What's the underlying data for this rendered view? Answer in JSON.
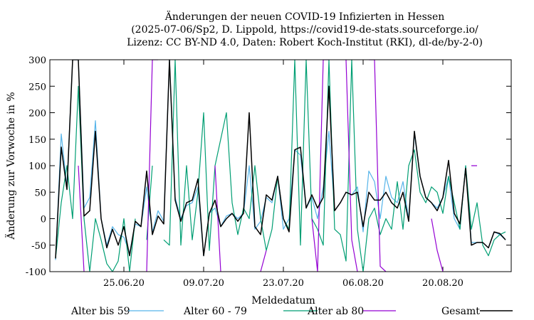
{
  "chart_data": {
    "type": "line",
    "title_lines": [
      "Änderungen der neuen COVID-19 Infizierten in Hessen",
      "(2025-07-06/Sp2, D. Lippold, https://covid19-de-stats.sourceforge.io/",
      "Lizenz: CC BY-ND 4.0, Daten: Robert Koch-Institut (RKI), dl-de/by-2-0)"
    ],
    "xlabel": "Meldedatum",
    "ylabel": "Änderung zur Vorwoche in %",
    "ylim": [
      -100,
      300
    ],
    "yticks": [
      -100,
      -50,
      0,
      50,
      100,
      150,
      200,
      250,
      300
    ],
    "xlim": [
      "2020-06-12",
      "2020-09-01"
    ],
    "xticks": [
      {
        "date": "2020-06-25",
        "label": "25.06.20"
      },
      {
        "date": "2020-07-09",
        "label": "09.07.20"
      },
      {
        "date": "2020-07-23",
        "label": "23.07.20"
      },
      {
        "date": "2020-08-06",
        "label": "06.08.20"
      },
      {
        "date": "2020-08-20",
        "label": "20.08.20"
      }
    ],
    "x_start": "2020-06-13",
    "grid": false,
    "legend_position": "bottom",
    "series": [
      {
        "name": "Alter bis 59",
        "color": "#56b4e9",
        "values": [
          -78,
          160,
          60,
          300,
          300,
          20,
          40,
          185,
          0,
          -50,
          -15,
          -30,
          -35,
          -65,
          -10,
          -15,
          60,
          -25,
          15,
          -5,
          300,
          40,
          0,
          25,
          30,
          60,
          -70,
          10,
          20,
          -15,
          5,
          10,
          0,
          10,
          100,
          -20,
          -5,
          40,
          30,
          80,
          -20,
          0,
          130,
          120,
          20,
          40,
          0,
          60,
          165,
          15,
          30,
          50,
          45,
          60,
          -25,
          90,
          70,
          0,
          80,
          40,
          30,
          70,
          0,
          160,
          80,
          40,
          30,
          20,
          40,
          80,
          0,
          -20,
          100,
          -45,
          -45,
          -45,
          -55,
          -25,
          -30,
          -40
        ]
      },
      {
        "name": "Alter 60 - 79",
        "color": "#009e73",
        "values": [
          -75,
          30,
          100,
          0,
          250,
          0,
          -100,
          0,
          -40,
          -85,
          -100,
          -80,
          0,
          -100,
          0,
          null,
          -40,
          100,
          null,
          -40,
          -50,
          300,
          -50,
          100,
          -40,
          50,
          200,
          -60,
          100,
          150,
          200,
          30,
          -30,
          20,
          0,
          100,
          0,
          -60,
          -20,
          80,
          0,
          -20,
          300,
          -50,
          300,
          0,
          -20,
          -50,
          300,
          -20,
          -30,
          -80,
          300,
          -20,
          -100,
          0,
          20,
          -30,
          0,
          -20,
          70,
          -20,
          100,
          130,
          50,
          30,
          60,
          50,
          10,
          80,
          30,
          -20,
          100,
          -20,
          30,
          -50,
          -70,
          -40,
          -30,
          -25
        ]
      },
      {
        "name": "Alter ab 80",
        "color": "#9400d3",
        "values": [
          null,
          null,
          null,
          null,
          100,
          -100,
          null,
          null,
          null,
          null,
          null,
          null,
          null,
          null,
          null,
          null,
          -100,
          300,
          300,
          null,
          null,
          null,
          null,
          null,
          -100,
          null,
          null,
          null,
          100,
          -100,
          null,
          null,
          -50,
          null,
          null,
          null,
          -100,
          -60,
          null,
          null,
          null,
          null,
          null,
          null,
          null,
          0,
          -100,
          300,
          300,
          null,
          null,
          300,
          -40,
          -100,
          null,
          300,
          300,
          -90,
          -100,
          null,
          null,
          null,
          null,
          -55,
          null,
          null,
          0,
          -60,
          -100,
          null,
          null,
          null,
          null,
          100,
          100,
          null,
          null,
          null,
          null,
          null
        ]
      },
      {
        "name": "Gesamt",
        "color": "#000000",
        "values": [
          -75,
          135,
          55,
          300,
          300,
          5,
          15,
          165,
          0,
          -55,
          -20,
          -50,
          -15,
          -70,
          -5,
          -15,
          90,
          -30,
          5,
          -10,
          300,
          35,
          -5,
          30,
          35,
          75,
          -70,
          10,
          35,
          -15,
          0,
          10,
          -5,
          10,
          200,
          -15,
          -30,
          45,
          35,
          80,
          0,
          -25,
          130,
          135,
          20,
          45,
          20,
          40,
          250,
          15,
          30,
          50,
          45,
          50,
          -15,
          50,
          35,
          35,
          50,
          30,
          20,
          50,
          -5,
          165,
          80,
          40,
          30,
          15,
          40,
          110,
          10,
          -10,
          95,
          -50,
          -45,
          -45,
          -55,
          -25,
          -28,
          -40
        ]
      }
    ]
  }
}
